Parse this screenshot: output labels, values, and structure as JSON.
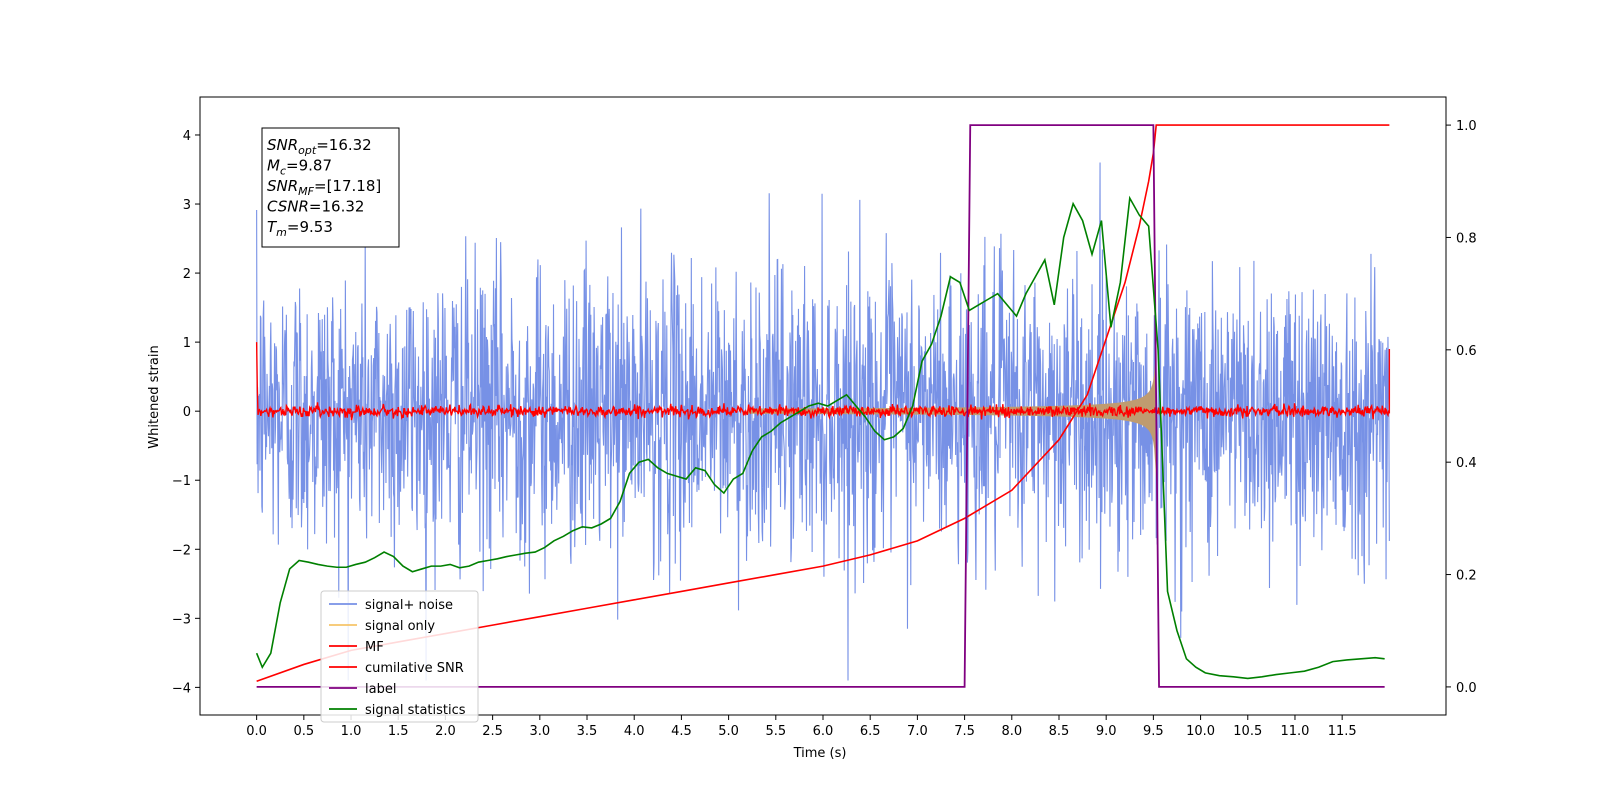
{
  "chart_data": {
    "type": "line",
    "xlabel": "Time (s)",
    "ylabel": "Whitened strain",
    "xlim": [
      -0.6,
      12.6
    ],
    "ylim": [
      -4.4,
      4.55
    ],
    "y2lim": [
      -0.05,
      1.05
    ],
    "x_ticks": [
      0.0,
      0.5,
      1.0,
      1.5,
      2.0,
      2.5,
      3.0,
      3.5,
      4.0,
      4.5,
      5.0,
      5.5,
      6.0,
      6.5,
      7.0,
      7.5,
      8.0,
      8.5,
      9.0,
      9.5,
      10.0,
      10.5,
      11.0,
      11.5
    ],
    "x_tick_labels": [
      "0.0",
      "0.5",
      "1.0",
      "1.5",
      "2.0",
      "2.5",
      "3.0",
      "3.5",
      "4.0",
      "4.5",
      "5.0",
      "5.5",
      "6.0",
      "6.5",
      "7.0",
      "7.5",
      "8.0",
      "8.5",
      "9.0",
      "9.5",
      "10.0",
      "10.5",
      "11.0",
      "11.5"
    ],
    "y_ticks": [
      -4,
      -3,
      -2,
      -1,
      0,
      1,
      2,
      3,
      4
    ],
    "y_tick_labels": [
      "−4",
      "−3",
      "−2",
      "−1",
      "0",
      "1",
      "2",
      "3",
      "4"
    ],
    "y2_ticks": [
      0.0,
      0.2,
      0.4,
      0.6,
      0.8,
      1.0
    ],
    "y2_tick_labels": [
      "0.0",
      "0.2",
      "0.4",
      "0.6",
      "0.8",
      "1.0"
    ],
    "grid": false,
    "legend_position": "lower-left",
    "info_box": [
      {
        "sym": "SNR",
        "sub": "opt",
        "val": "=16.32"
      },
      {
        "sym": "M",
        "sub": "c",
        "val": "=9.87"
      },
      {
        "sym": "SNR",
        "sub": "MF",
        "val": "=[17.18]"
      },
      {
        "sym": "CSNR",
        "sub": "",
        "val": "=16.32"
      },
      {
        "sym": "T",
        "sub": "m",
        "val": "=9.53"
      }
    ],
    "series": [
      {
        "name": "signal+ noise",
        "color": "#7791e6",
        "axis": "left",
        "kind": "noise",
        "x_range": [
          0.0,
          12.0
        ],
        "noise_sigma": 1.0,
        "y_range_shown": [
          -3.9,
          4.15
        ]
      },
      {
        "name": "signal only",
        "color": "#f6c46a",
        "axis": "left",
        "kind": "chirp",
        "merger_time": 9.53,
        "peak_amplitude": 1.05,
        "start_time": 5.2
      },
      {
        "name": "MF",
        "color": "#ff0000",
        "axis": "left",
        "kind": "matched-filter",
        "edge_values": [
          1.0,
          0.9
        ],
        "level": 0.0
      },
      {
        "name": "cumilative SNR",
        "color": "#ff0000",
        "axis": "right",
        "x": [
          0.0,
          0.5,
          1.0,
          1.5,
          2.0,
          2.5,
          3.0,
          3.5,
          4.0,
          4.5,
          5.0,
          5.5,
          6.0,
          6.5,
          7.0,
          7.5,
          8.0,
          8.5,
          8.8,
          9.0,
          9.2,
          9.35,
          9.45,
          9.5,
          9.53,
          9.6,
          10.0,
          11.0,
          12.0
        ],
        "values": [
          0.01,
          0.04,
          0.065,
          0.08,
          0.095,
          0.11,
          0.125,
          0.14,
          0.155,
          0.17,
          0.185,
          0.2,
          0.215,
          0.235,
          0.26,
          0.3,
          0.35,
          0.44,
          0.52,
          0.62,
          0.72,
          0.82,
          0.9,
          0.95,
          1.0,
          1.0,
          1.0,
          1.0,
          1.0
        ]
      },
      {
        "name": "label",
        "color": "#800080",
        "axis": "right",
        "x": [
          0.0,
          7.5,
          7.56,
          9.5,
          9.56,
          11.95
        ],
        "values": [
          0.0,
          0.0,
          1.0,
          1.0,
          0.0,
          0.0
        ]
      },
      {
        "name": "signal statistics",
        "color": "#008000",
        "axis": "right",
        "x": [
          0.0,
          0.06,
          0.15,
          0.25,
          0.35,
          0.45,
          0.55,
          0.65,
          0.75,
          0.85,
          0.95,
          1.05,
          1.15,
          1.25,
          1.35,
          1.45,
          1.55,
          1.65,
          1.75,
          1.85,
          1.95,
          2.05,
          2.15,
          2.25,
          2.35,
          2.45,
          2.55,
          2.65,
          2.75,
          2.85,
          2.95,
          3.05,
          3.15,
          3.25,
          3.35,
          3.45,
          3.55,
          3.65,
          3.75,
          3.85,
          3.95,
          4.05,
          4.15,
          4.25,
          4.35,
          4.45,
          4.55,
          4.65,
          4.75,
          4.85,
          4.95,
          5.05,
          5.15,
          5.25,
          5.35,
          5.45,
          5.55,
          5.65,
          5.75,
          5.85,
          5.95,
          6.05,
          6.15,
          6.25,
          6.35,
          6.45,
          6.55,
          6.65,
          6.75,
          6.85,
          6.95,
          7.05,
          7.15,
          7.25,
          7.35,
          7.45,
          7.55,
          7.65,
          7.75,
          7.85,
          7.95,
          8.05,
          8.15,
          8.25,
          8.35,
          8.45,
          8.55,
          8.65,
          8.75,
          8.85,
          8.95,
          9.05,
          9.15,
          9.25,
          9.35,
          9.45,
          9.55,
          9.65,
          9.75,
          9.85,
          9.95,
          10.05,
          10.2,
          10.35,
          10.5,
          10.65,
          10.8,
          10.95,
          11.1,
          11.25,
          11.4,
          11.55,
          11.7,
          11.85,
          11.95
        ],
        "values": [
          0.06,
          0.035,
          0.06,
          0.15,
          0.21,
          0.225,
          0.222,
          0.218,
          0.215,
          0.213,
          0.213,
          0.218,
          0.222,
          0.23,
          0.24,
          0.232,
          0.215,
          0.205,
          0.21,
          0.215,
          0.215,
          0.218,
          0.212,
          0.215,
          0.222,
          0.225,
          0.228,
          0.232,
          0.235,
          0.238,
          0.24,
          0.248,
          0.26,
          0.268,
          0.278,
          0.285,
          0.283,
          0.29,
          0.3,
          0.33,
          0.38,
          0.4,
          0.405,
          0.39,
          0.38,
          0.375,
          0.37,
          0.39,
          0.385,
          0.36,
          0.345,
          0.37,
          0.38,
          0.42,
          0.445,
          0.455,
          0.47,
          0.48,
          0.49,
          0.5,
          0.505,
          0.5,
          0.51,
          0.52,
          0.5,
          0.48,
          0.455,
          0.44,
          0.445,
          0.46,
          0.5,
          0.58,
          0.61,
          0.66,
          0.73,
          0.72,
          0.67,
          0.68,
          0.69,
          0.7,
          0.68,
          0.66,
          0.7,
          0.73,
          0.76,
          0.68,
          0.8,
          0.86,
          0.83,
          0.77,
          0.83,
          0.64,
          0.72,
          0.87,
          0.84,
          0.82,
          0.6,
          0.17,
          0.1,
          0.05,
          0.035,
          0.025,
          0.02,
          0.018,
          0.015,
          0.018,
          0.022,
          0.025,
          0.028,
          0.035,
          0.045,
          0.048,
          0.05,
          0.052,
          0.05
        ]
      }
    ]
  }
}
